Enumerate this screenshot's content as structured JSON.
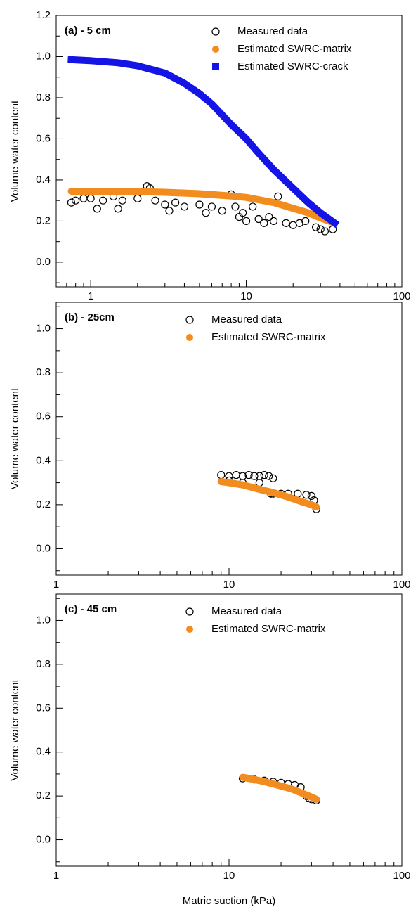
{
  "chart_data": [
    {
      "type": "scatter",
      "panel_label": "(a) - 5 cm",
      "ylabel": "Volume water content",
      "xlim": [
        0.6,
        100
      ],
      "xticks": [
        1,
        10,
        100
      ],
      "xminorticks": [
        0.7,
        0.8,
        0.9,
        2,
        3,
        4,
        5,
        6,
        7,
        8,
        9,
        20,
        30,
        40,
        50,
        60,
        70,
        80,
        90
      ],
      "log_x": true,
      "ylim": [
        -0.12,
        1.2
      ],
      "yticks": [
        {
          "value": 0,
          "label": "0.0"
        },
        0.2,
        0.4,
        0.6,
        0.8,
        {
          "value": 1,
          "label": "1.0"
        },
        1.2
      ],
      "yminorticks": [
        -0.1,
        0.1,
        0.3,
        0.5,
        0.7,
        0.9,
        1.1
      ],
      "series": [
        {
          "name": "Measured data",
          "color": "#000000",
          "marker": "open-circle",
          "x": [
            0.75,
            0.8,
            0.9,
            1,
            1.2,
            1.4,
            1.6,
            2,
            2.3,
            2.4,
            2.6,
            3,
            3.5,
            4,
            5,
            6,
            7,
            8,
            8.5,
            9,
            10,
            11,
            12,
            13,
            15,
            16,
            18,
            20,
            24,
            28,
            32,
            36,
            1.1,
            1.5,
            3.2,
            5.5,
            9.5,
            14,
            22,
            30
          ],
          "values": [
            0.29,
            0.3,
            0.31,
            0.31,
            0.3,
            0.32,
            0.3,
            0.31,
            0.37,
            0.36,
            0.3,
            0.28,
            0.29,
            0.27,
            0.28,
            0.27,
            0.25,
            0.33,
            0.27,
            0.22,
            0.2,
            0.27,
            0.21,
            0.19,
            0.2,
            0.32,
            0.19,
            0.18,
            0.2,
            0.17,
            0.15,
            0.16,
            0.26,
            0.26,
            0.25,
            0.24,
            0.24,
            0.22,
            0.19,
            0.16
          ]
        },
        {
          "name": "Estimated SWRC-matrix",
          "color": "#f28c1e",
          "marker": "circle",
          "x": [
            0.75,
            1,
            2,
            3,
            5,
            8,
            10,
            15,
            20,
            25,
            30,
            37
          ],
          "values": [
            0.345,
            0.345,
            0.343,
            0.34,
            0.333,
            0.322,
            0.315,
            0.29,
            0.262,
            0.24,
            0.215,
            0.19
          ]
        },
        {
          "name": "Estimated SWRC-crack",
          "color": "#1414e6",
          "marker": "square",
          "x": [
            0.75,
            1,
            1.5,
            2,
            3,
            4,
            5,
            6,
            8,
            10,
            12,
            15,
            20,
            25,
            30,
            37
          ],
          "values": [
            0.985,
            0.98,
            0.97,
            0.955,
            0.92,
            0.87,
            0.82,
            0.77,
            0.67,
            0.6,
            0.53,
            0.45,
            0.36,
            0.29,
            0.24,
            0.19
          ]
        }
      ]
    },
    {
      "type": "scatter",
      "panel_label": "(b) - 25cm",
      "ylabel": "Volume water content",
      "xlim": [
        1,
        100
      ],
      "xticks": [
        1,
        10,
        100
      ],
      "xminorticks": [
        2,
        3,
        4,
        5,
        6,
        7,
        8,
        9,
        20,
        30,
        40,
        50,
        60,
        70,
        80,
        90
      ],
      "log_x": true,
      "ylim": [
        -0.12,
        1.12
      ],
      "yticks": [
        {
          "value": 0,
          "label": "0.0"
        },
        0.2,
        0.4,
        0.6,
        0.8,
        {
          "value": 1,
          "label": "1.0"
        }
      ],
      "yminorticks": [
        -0.1,
        0.1,
        0.3,
        0.5,
        0.7,
        0.9,
        1.1
      ],
      "series": [
        {
          "name": "Measured data",
          "color": "#000000",
          "marker": "open-circle",
          "x": [
            9,
            10,
            11,
            12,
            13,
            14,
            15,
            16,
            17,
            17.5,
            18,
            18,
            20,
            22,
            25,
            28,
            30,
            31,
            32,
            15,
            12,
            10
          ],
          "values": [
            0.335,
            0.33,
            0.335,
            0.33,
            0.335,
            0.33,
            0.33,
            0.335,
            0.33,
            0.25,
            0.32,
            0.25,
            0.25,
            0.25,
            0.25,
            0.245,
            0.24,
            0.22,
            0.18,
            0.3,
            0.3,
            0.31
          ]
        },
        {
          "name": "Estimated SWRC-matrix",
          "color": "#f28c1e",
          "marker": "circle",
          "x": [
            9,
            10,
            12,
            15,
            18,
            22,
            26,
            30,
            32
          ],
          "values": [
            0.305,
            0.3,
            0.29,
            0.27,
            0.255,
            0.235,
            0.215,
            0.2,
            0.19
          ]
        }
      ]
    },
    {
      "type": "scatter",
      "panel_label": "(c) - 45 cm",
      "ylabel": "Volume water content",
      "xlabel": "Matric suction (kPa)",
      "xlim": [
        1,
        100
      ],
      "xticks": [
        1,
        10,
        100
      ],
      "xminorticks": [
        2,
        3,
        4,
        5,
        6,
        7,
        8,
        9,
        20,
        30,
        40,
        50,
        60,
        70,
        80,
        90
      ],
      "log_x": true,
      "ylim": [
        -0.12,
        1.12
      ],
      "yticks": [
        {
          "value": 0,
          "label": "0.0"
        },
        0.2,
        0.4,
        0.6,
        0.8,
        {
          "value": 1,
          "label": "1.0"
        }
      ],
      "yminorticks": [
        -0.1,
        0.1,
        0.3,
        0.5,
        0.7,
        0.9,
        1.1
      ],
      "series": [
        {
          "name": "Measured data",
          "color": "#000000",
          "marker": "open-circle",
          "x": [
            12,
            14,
            16,
            18,
            20,
            22,
            24,
            26,
            28,
            30,
            32,
            29
          ],
          "values": [
            0.28,
            0.275,
            0.27,
            0.265,
            0.26,
            0.255,
            0.25,
            0.24,
            0.2,
            0.185,
            0.18,
            0.19
          ]
        },
        {
          "name": "Estimated SWRC-matrix",
          "color": "#f28c1e",
          "marker": "circle",
          "x": [
            12,
            14,
            16,
            18,
            20,
            23,
            26,
            29,
            32
          ],
          "values": [
            0.285,
            0.275,
            0.265,
            0.255,
            0.245,
            0.232,
            0.215,
            0.2,
            0.185
          ]
        }
      ]
    }
  ]
}
